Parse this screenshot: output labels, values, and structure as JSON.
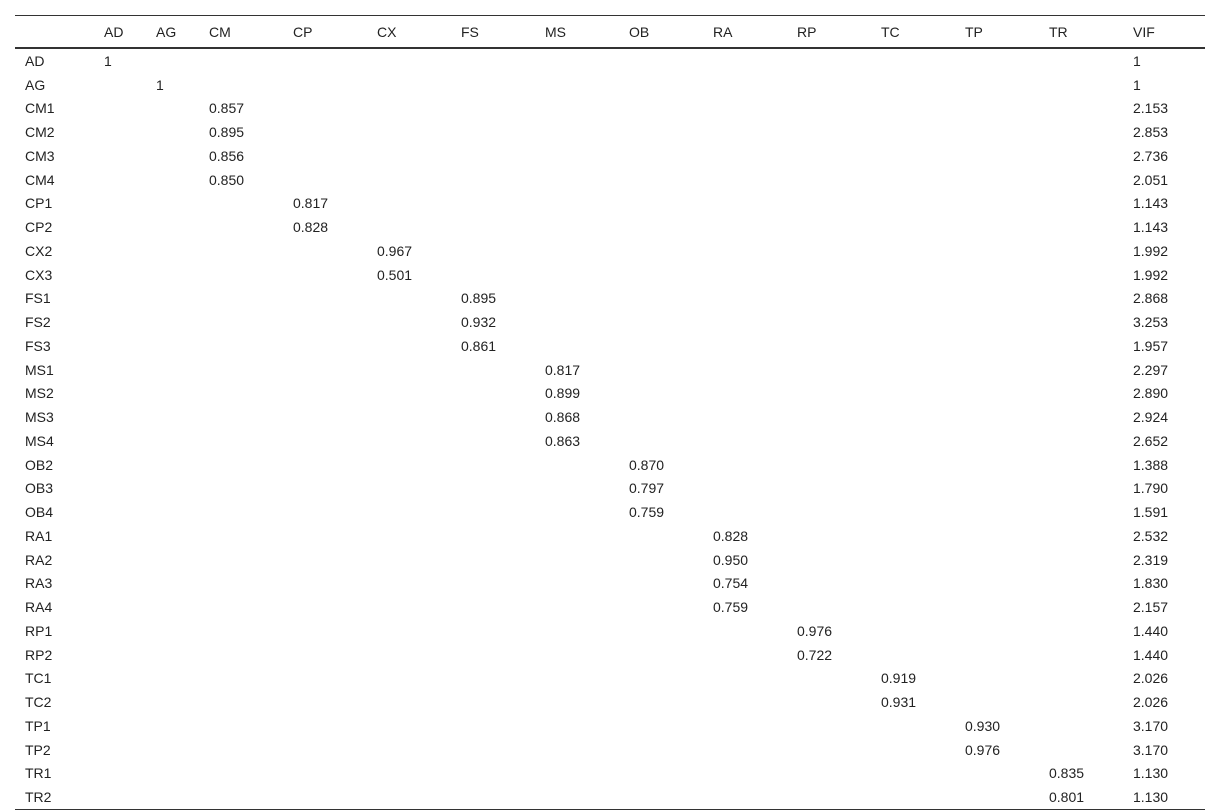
{
  "table": {
    "header": [
      null,
      "AD",
      "AG",
      "CM",
      "CP",
      "CX",
      "FS",
      "MS",
      "OB",
      "RA",
      "RP",
      "TC",
      "TP",
      "TR",
      "VIF"
    ],
    "rows": [
      [
        "AD",
        "1",
        null,
        null,
        null,
        null,
        null,
        null,
        null,
        null,
        null,
        null,
        null,
        null,
        "1"
      ],
      [
        "AG",
        null,
        "1",
        null,
        null,
        null,
        null,
        null,
        null,
        null,
        null,
        null,
        null,
        null,
        "1"
      ],
      [
        "CM1",
        null,
        null,
        "0.857",
        null,
        null,
        null,
        null,
        null,
        null,
        null,
        null,
        null,
        null,
        "2.153"
      ],
      [
        "CM2",
        null,
        null,
        "0.895",
        null,
        null,
        null,
        null,
        null,
        null,
        null,
        null,
        null,
        null,
        "2.853"
      ],
      [
        "CM3",
        null,
        null,
        "0.856",
        null,
        null,
        null,
        null,
        null,
        null,
        null,
        null,
        null,
        null,
        "2.736"
      ],
      [
        "CM4",
        null,
        null,
        "0.850",
        null,
        null,
        null,
        null,
        null,
        null,
        null,
        null,
        null,
        null,
        "2.051"
      ],
      [
        "CP1",
        null,
        null,
        null,
        "0.817",
        null,
        null,
        null,
        null,
        null,
        null,
        null,
        null,
        null,
        "1.143"
      ],
      [
        "CP2",
        null,
        null,
        null,
        "0.828",
        null,
        null,
        null,
        null,
        null,
        null,
        null,
        null,
        null,
        "1.143"
      ],
      [
        "CX2",
        null,
        null,
        null,
        null,
        "0.967",
        null,
        null,
        null,
        null,
        null,
        null,
        null,
        null,
        "1.992"
      ],
      [
        "CX3",
        null,
        null,
        null,
        null,
        "0.501",
        null,
        null,
        null,
        null,
        null,
        null,
        null,
        null,
        "1.992"
      ],
      [
        "FS1",
        null,
        null,
        null,
        null,
        null,
        "0.895",
        null,
        null,
        null,
        null,
        null,
        null,
        null,
        "2.868"
      ],
      [
        "FS2",
        null,
        null,
        null,
        null,
        null,
        "0.932",
        null,
        null,
        null,
        null,
        null,
        null,
        null,
        "3.253"
      ],
      [
        "FS3",
        null,
        null,
        null,
        null,
        null,
        "0.861",
        null,
        null,
        null,
        null,
        null,
        null,
        null,
        "1.957"
      ],
      [
        "MS1",
        null,
        null,
        null,
        null,
        null,
        null,
        "0.817",
        null,
        null,
        null,
        null,
        null,
        null,
        "2.297"
      ],
      [
        "MS2",
        null,
        null,
        null,
        null,
        null,
        null,
        "0.899",
        null,
        null,
        null,
        null,
        null,
        null,
        "2.890"
      ],
      [
        "MS3",
        null,
        null,
        null,
        null,
        null,
        null,
        "0.868",
        null,
        null,
        null,
        null,
        null,
        null,
        "2.924"
      ],
      [
        "MS4",
        null,
        null,
        null,
        null,
        null,
        null,
        "0.863",
        null,
        null,
        null,
        null,
        null,
        null,
        "2.652"
      ],
      [
        "OB2",
        null,
        null,
        null,
        null,
        null,
        null,
        null,
        "0.870",
        null,
        null,
        null,
        null,
        null,
        "1.388"
      ],
      [
        "OB3",
        null,
        null,
        null,
        null,
        null,
        null,
        null,
        "0.797",
        null,
        null,
        null,
        null,
        null,
        "1.790"
      ],
      [
        "OB4",
        null,
        null,
        null,
        null,
        null,
        null,
        null,
        "0.759",
        null,
        null,
        null,
        null,
        null,
        "1.591"
      ],
      [
        "RA1",
        null,
        null,
        null,
        null,
        null,
        null,
        null,
        null,
        "0.828",
        null,
        null,
        null,
        null,
        "2.532"
      ],
      [
        "RA2",
        null,
        null,
        null,
        null,
        null,
        null,
        null,
        null,
        "0.950",
        null,
        null,
        null,
        null,
        "2.319"
      ],
      [
        "RA3",
        null,
        null,
        null,
        null,
        null,
        null,
        null,
        null,
        "0.754",
        null,
        null,
        null,
        null,
        "1.830"
      ],
      [
        "RA4",
        null,
        null,
        null,
        null,
        null,
        null,
        null,
        null,
        "0.759",
        null,
        null,
        null,
        null,
        "2.157"
      ],
      [
        "RP1",
        null,
        null,
        null,
        null,
        null,
        null,
        null,
        null,
        null,
        "0.976",
        null,
        null,
        null,
        "1.440"
      ],
      [
        "RP2",
        null,
        null,
        null,
        null,
        null,
        null,
        null,
        null,
        null,
        "0.722",
        null,
        null,
        null,
        "1.440"
      ],
      [
        "TC1",
        null,
        null,
        null,
        null,
        null,
        null,
        null,
        null,
        null,
        null,
        "0.919",
        null,
        null,
        "2.026"
      ],
      [
        "TC2",
        null,
        null,
        null,
        null,
        null,
        null,
        null,
        null,
        null,
        null,
        "0.931",
        null,
        null,
        "2.026"
      ],
      [
        "TP1",
        null,
        null,
        null,
        null,
        null,
        null,
        null,
        null,
        null,
        null,
        null,
        "0.930",
        null,
        "3.170"
      ],
      [
        "TP2",
        null,
        null,
        null,
        null,
        null,
        null,
        null,
        null,
        null,
        null,
        null,
        "0.976",
        null,
        "3.170"
      ],
      [
        "TR1",
        null,
        null,
        null,
        null,
        null,
        null,
        null,
        null,
        null,
        null,
        null,
        null,
        "0.835",
        "1.130"
      ],
      [
        "TR2",
        null,
        null,
        null,
        null,
        null,
        null,
        null,
        null,
        null,
        null,
        null,
        null,
        "0.801",
        "1.130"
      ]
    ]
  }
}
